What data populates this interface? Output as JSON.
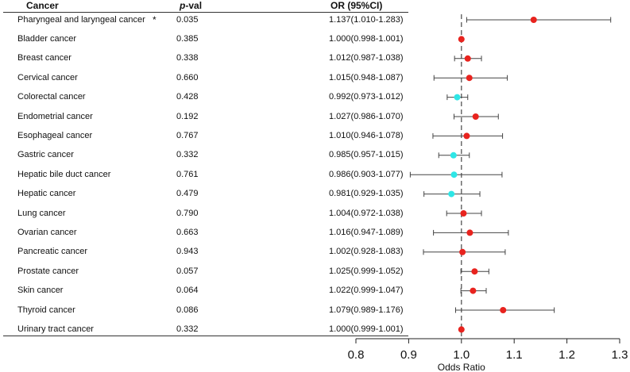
{
  "headers": {
    "cancer": "Cancer",
    "p_val_italic": "p",
    "p_val_rest": "-val",
    "or": "OR  (95%CI)"
  },
  "rows": [
    {
      "cancer": "Pharyngeal and laryngeal cancer",
      "mark": "*",
      "p": "0.035",
      "or_text": "1.137(1.010-1.283)"
    },
    {
      "cancer": "Bladder cancer",
      "mark": "",
      "p": "0.385",
      "or_text": "1.000(0.998-1.001)"
    },
    {
      "cancer": "Breast cancer",
      "mark": "",
      "p": "0.338",
      "or_text": "1.012(0.987-1.038)"
    },
    {
      "cancer": "Cervical cancer",
      "mark": "",
      "p": "0.660",
      "or_text": "1.015(0.948-1.087)"
    },
    {
      "cancer": "Colorectal cancer",
      "mark": "",
      "p": "0.428",
      "or_text": "0.992(0.973-1.012)"
    },
    {
      "cancer": "Endometrial cancer",
      "mark": "",
      "p": "0.192",
      "or_text": "1.027(0.986-1.070)"
    },
    {
      "cancer": "Esophageal cancer",
      "mark": "",
      "p": "0.767",
      "or_text": "1.010(0.946-1.078)"
    },
    {
      "cancer": "Gastric cancer",
      "mark": "",
      "p": "0.332",
      "or_text": "0.985(0.957-1.015)"
    },
    {
      "cancer": "Hepatic bile duct cancer",
      "mark": "",
      "p": "0.761",
      "or_text": "0.986(0.903-1.077)"
    },
    {
      "cancer": "Hepatic cancer",
      "mark": "",
      "p": "0.479",
      "or_text": "0.981(0.929-1.035)"
    },
    {
      "cancer": "Lung cancer",
      "mark": "",
      "p": "0.790",
      "or_text": "1.004(0.972-1.038)"
    },
    {
      "cancer": "Ovarian cancer",
      "mark": "",
      "p": "0.663",
      "or_text": "1.016(0.947-1.089)"
    },
    {
      "cancer": "Pancreatic cancer",
      "mark": "",
      "p": "0.943",
      "or_text": "1.002(0.928-1.083)"
    },
    {
      "cancer": "Prostate cancer",
      "mark": "",
      "p": "0.057",
      "or_text": "1.025(0.999-1.052)"
    },
    {
      "cancer": "Skin cancer",
      "mark": "",
      "p": "0.064",
      "or_text": "1.022(0.999-1.047)"
    },
    {
      "cancer": "Thyroid cancer",
      "mark": "",
      "p": "0.086",
      "or_text": "1.079(0.989-1.176)"
    },
    {
      "cancer": "Urinary tract cancer",
      "mark": "",
      "p": "0.332",
      "or_text": "1.000(0.999-1.001)"
    }
  ],
  "chart_data": {
    "type": "scatter",
    "subtype": "forest_plot",
    "xlabel": "Odds Ratio",
    "xlim": [
      0.8,
      1.3
    ],
    "xticks": [
      "0.8",
      "0.9",
      "1.0",
      "1.1",
      "1.2",
      "1.3"
    ],
    "reference_line": 1.0,
    "categories": [
      "Pharyngeal and laryngeal cancer",
      "Bladder cancer",
      "Breast cancer",
      "Cervical cancer",
      "Colorectal cancer",
      "Endometrial cancer",
      "Esophageal cancer",
      "Gastric cancer",
      "Hepatic bile duct cancer",
      "Hepatic cancer",
      "Lung cancer",
      "Ovarian cancer",
      "Pancreatic cancer",
      "Prostate cancer",
      "Skin cancer",
      "Thyroid cancer",
      "Urinary tract cancer"
    ],
    "or": [
      1.137,
      1.0,
      1.012,
      1.015,
      0.992,
      1.027,
      1.01,
      0.985,
      0.986,
      0.981,
      1.004,
      1.016,
      1.002,
      1.025,
      1.022,
      1.079,
      1.0
    ],
    "ci_low": [
      1.01,
      0.998,
      0.987,
      0.948,
      0.973,
      0.986,
      0.946,
      0.957,
      0.903,
      0.929,
      0.972,
      0.947,
      0.928,
      0.999,
      0.999,
      0.989,
      0.999
    ],
    "ci_high": [
      1.283,
      1.001,
      1.038,
      1.087,
      1.012,
      1.07,
      1.078,
      1.015,
      1.077,
      1.035,
      1.038,
      1.089,
      1.083,
      1.052,
      1.047,
      1.176,
      1.001
    ],
    "colors": {
      "above": "#e8231e",
      "below": "#2ee6e6",
      "whisker": "#444444",
      "refline": "#555555"
    }
  }
}
